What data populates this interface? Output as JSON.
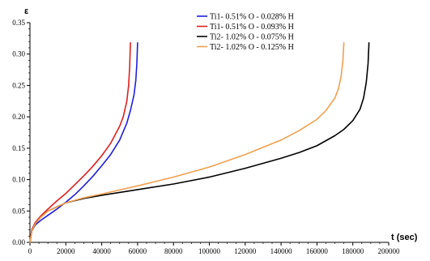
{
  "chart_data": {
    "type": "line",
    "title": "",
    "xlabel": "t (sec)",
    "ylabel": "ε",
    "xlim": [
      0,
      200000
    ],
    "ylim": [
      0,
      0.35
    ],
    "x_ticks": [
      0,
      20000,
      40000,
      60000,
      80000,
      100000,
      120000,
      140000,
      160000,
      180000,
      200000
    ],
    "y_ticks": [
      "0.00",
      "0.05",
      "0.10",
      "0.15",
      "0.20",
      "0.25",
      "0.30",
      "0.35"
    ],
    "grid": false,
    "legend_position": "top-center",
    "series": [
      {
        "name": "Ti1- 0.51% O - 0.028% H",
        "color": "#1f1fe0",
        "x": [
          0,
          1000,
          3000,
          6000,
          10000,
          15000,
          20000,
          25000,
          30000,
          35000,
          40000,
          45000,
          50000,
          54000,
          56000,
          58000,
          59000,
          59600,
          60000
        ],
        "y": [
          0,
          0.018,
          0.028,
          0.035,
          0.043,
          0.053,
          0.064,
          0.076,
          0.09,
          0.105,
          0.122,
          0.14,
          0.163,
          0.19,
          0.21,
          0.235,
          0.258,
          0.285,
          0.318
        ]
      },
      {
        "name": "Ti1- 0.51% O - 0.093% H",
        "color": "#e01f1f",
        "x": [
          0,
          1000,
          3000,
          6000,
          10000,
          15000,
          20000,
          25000,
          30000,
          35000,
          40000,
          45000,
          50000,
          52000,
          54000,
          55000,
          55600,
          56000
        ],
        "y": [
          0,
          0.02,
          0.032,
          0.042,
          0.053,
          0.066,
          0.078,
          0.092,
          0.106,
          0.121,
          0.138,
          0.158,
          0.185,
          0.2,
          0.225,
          0.25,
          0.28,
          0.318
        ]
      },
      {
        "name": "Ti2- 1.02% O - 0.075% H",
        "color": "#000000",
        "x": [
          0,
          1000,
          3000,
          6000,
          10000,
          20000,
          30000,
          40000,
          60000,
          80000,
          100000,
          120000,
          140000,
          150000,
          160000,
          170000,
          175000,
          180000,
          184000,
          186000,
          187500,
          188500,
          189000
        ],
        "y": [
          0,
          0.018,
          0.03,
          0.04,
          0.05,
          0.063,
          0.07,
          0.075,
          0.084,
          0.093,
          0.104,
          0.118,
          0.134,
          0.143,
          0.154,
          0.17,
          0.18,
          0.194,
          0.212,
          0.23,
          0.255,
          0.285,
          0.318
        ]
      },
      {
        "name": "Ti2- 1.02% O - 0.125% H",
        "color": "#f0a050",
        "x": [
          0,
          1000,
          3000,
          6000,
          10000,
          20000,
          30000,
          40000,
          60000,
          80000,
          100000,
          120000,
          140000,
          150000,
          160000,
          165000,
          170000,
          172000,
          173500,
          174500,
          175000
        ],
        "y": [
          0,
          0.018,
          0.03,
          0.04,
          0.05,
          0.063,
          0.071,
          0.077,
          0.09,
          0.104,
          0.12,
          0.14,
          0.163,
          0.178,
          0.196,
          0.21,
          0.23,
          0.245,
          0.265,
          0.29,
          0.318
        ]
      }
    ]
  }
}
